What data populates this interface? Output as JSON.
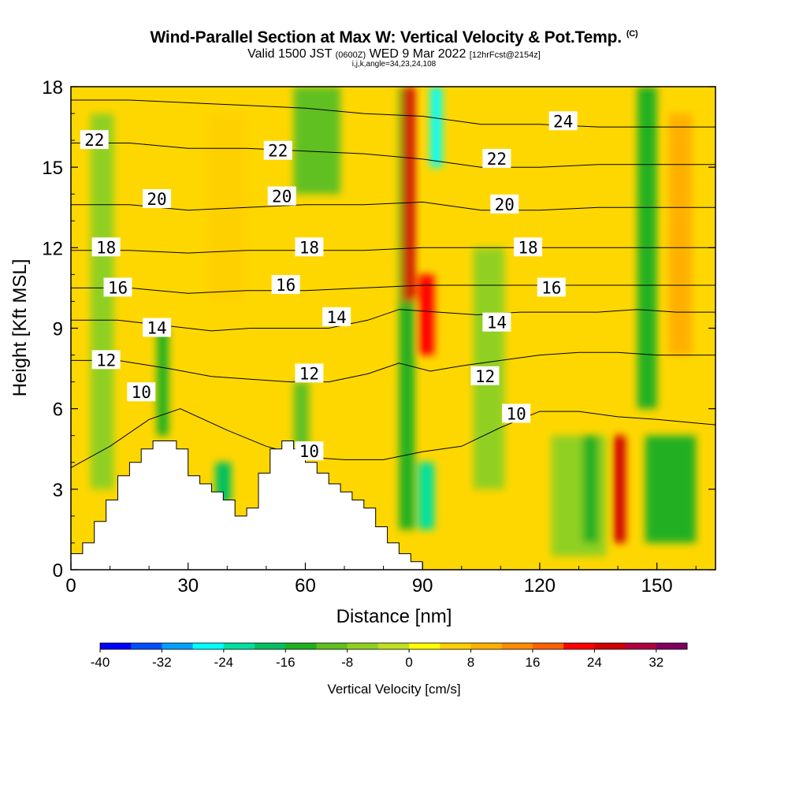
{
  "header": {
    "title": "Wind-Parallel Section at Max W: Vertical Velocity & Pot.Temp.",
    "copyright": "(C)",
    "valid_a": "Valid 1500 JST",
    "valid_b": "(0600Z)",
    "valid_c": "WED 9 Mar 2022",
    "valid_d": "[12hrFcst@2154z]",
    "indices": "i,j,k,angle=34,23,24,108"
  },
  "chart_data": {
    "type": "heatmap",
    "xlabel": "Distance [nm]",
    "ylabel": "Height [Kft MSL]",
    "xlim": [
      0,
      165
    ],
    "ylim": [
      0,
      18
    ],
    "x_ticks": [
      0,
      30,
      60,
      90,
      120,
      150
    ],
    "y_ticks": [
      0,
      3,
      6,
      9,
      12,
      15,
      18
    ],
    "colorbar": {
      "title": "Vertical Velocity [cm/s]",
      "tick_labels": [
        "-40",
        "-32",
        "-24",
        "-16",
        "-8",
        "0",
        "8",
        "16",
        "24",
        "32"
      ],
      "levels": [
        -40,
        -36,
        -32,
        -28,
        -24,
        -20,
        -16,
        -12,
        -8,
        -4,
        0,
        4,
        8,
        12,
        16,
        20,
        24,
        28,
        32,
        36
      ],
      "colors": [
        "#0000ff",
        "#0050ff",
        "#00a0ff",
        "#00ffff",
        "#00e0a0",
        "#00c060",
        "#20b020",
        "#60c020",
        "#90d020",
        "#c0e020",
        "#ffff00",
        "#ffd000",
        "#ffb000",
        "#ff8c00",
        "#ff6000",
        "#ff0000",
        "#d00000",
        "#b00040",
        "#800060"
      ]
    },
    "shading_bands": [
      {
        "x": 5,
        "w": 6,
        "y0": 3,
        "y1": 17,
        "value": -6
      },
      {
        "x": 22,
        "w": 3,
        "y0": 5,
        "y1": 9,
        "value": -14
      },
      {
        "x": 37,
        "w": 4,
        "y0": 2.5,
        "y1": 4,
        "value": -18
      },
      {
        "x": 35,
        "w": 10,
        "y0": 10,
        "y1": 17,
        "value": 6
      },
      {
        "x": 57,
        "w": 4,
        "y0": 4.5,
        "y1": 7,
        "value": -12
      },
      {
        "x": 57,
        "w": 12,
        "y0": 14,
        "y1": 18,
        "value": -10
      },
      {
        "x": 84,
        "w": 4,
        "y0": 1.5,
        "y1": 18,
        "value": -16
      },
      {
        "x": 85,
        "w": 3,
        "y0": 10,
        "y1": 18,
        "value": 24
      },
      {
        "x": 89,
        "w": 4,
        "y0": 8,
        "y1": 11,
        "value": 20
      },
      {
        "x": 89,
        "w": 4,
        "y0": 1.5,
        "y1": 4,
        "value": -24
      },
      {
        "x": 92,
        "w": 3,
        "y0": 15,
        "y1": 18,
        "value": -28
      },
      {
        "x": 103,
        "w": 8,
        "y0": 3,
        "y1": 12,
        "value": -8
      },
      {
        "x": 123,
        "w": 14,
        "y0": 0.5,
        "y1": 5,
        "value": -8
      },
      {
        "x": 131,
        "w": 4,
        "y0": 1,
        "y1": 5,
        "value": -16
      },
      {
        "x": 139,
        "w": 3,
        "y0": 1,
        "y1": 5,
        "value": 24
      },
      {
        "x": 145,
        "w": 5,
        "y0": 6,
        "y1": 18,
        "value": -16
      },
      {
        "x": 147,
        "w": 13,
        "y0": 1,
        "y1": 5,
        "value": -14
      },
      {
        "x": 153,
        "w": 6,
        "y0": 8,
        "y1": 17,
        "value": 8
      }
    ],
    "terrain": [
      [
        0,
        0.6
      ],
      [
        3,
        0.6
      ],
      [
        3,
        1
      ],
      [
        6,
        1
      ],
      [
        6,
        1.8
      ],
      [
        9,
        1.8
      ],
      [
        9,
        2.6
      ],
      [
        12,
        2.6
      ],
      [
        12,
        3.5
      ],
      [
        15,
        3.5
      ],
      [
        15,
        4
      ],
      [
        18,
        4
      ],
      [
        18,
        4.5
      ],
      [
        21,
        4.5
      ],
      [
        21,
        4.8
      ],
      [
        27,
        4.8
      ],
      [
        27,
        4.5
      ],
      [
        30,
        4.5
      ],
      [
        30,
        3.5
      ],
      [
        33,
        3.5
      ],
      [
        33,
        3.2
      ],
      [
        36,
        3.2
      ],
      [
        36,
        2.9
      ],
      [
        39,
        2.9
      ],
      [
        39,
        2.6
      ],
      [
        42,
        2.6
      ],
      [
        42,
        2
      ],
      [
        45,
        2
      ],
      [
        45,
        2.3
      ],
      [
        48,
        2.3
      ],
      [
        48,
        3.6
      ],
      [
        51,
        3.6
      ],
      [
        51,
        4.5
      ],
      [
        54,
        4.5
      ],
      [
        54,
        4.8
      ],
      [
        57,
        4.8
      ],
      [
        57,
        4.5
      ],
      [
        60,
        4.5
      ],
      [
        60,
        4
      ],
      [
        63,
        4
      ],
      [
        63,
        3.6
      ],
      [
        66,
        3.6
      ],
      [
        66,
        3.2
      ],
      [
        69,
        3.2
      ],
      [
        69,
        2.9
      ],
      [
        72,
        2.9
      ],
      [
        72,
        2.6
      ],
      [
        75,
        2.6
      ],
      [
        75,
        2.3
      ],
      [
        78,
        2.3
      ],
      [
        78,
        1.6
      ],
      [
        81,
        1.6
      ],
      [
        81,
        1
      ],
      [
        84,
        1
      ],
      [
        84,
        0.6
      ],
      [
        87,
        0.6
      ],
      [
        87,
        0.3
      ],
      [
        90,
        0.3
      ],
      [
        90,
        0
      ],
      [
        0,
        0
      ]
    ],
    "theta_contours": [
      {
        "level": 10,
        "points": [
          [
            0,
            3.8
          ],
          [
            10,
            4.6
          ],
          [
            20,
            5.6
          ],
          [
            28,
            6
          ],
          [
            40,
            5.2
          ],
          [
            50,
            4.6
          ],
          [
            60,
            4.2
          ],
          [
            70,
            4.1
          ],
          [
            80,
            4.1
          ],
          [
            90,
            4.4
          ],
          [
            100,
            4.6
          ],
          [
            110,
            5.3
          ],
          [
            120,
            5.9
          ],
          [
            130,
            5.9
          ],
          [
            140,
            5.7
          ],
          [
            150,
            5.6
          ],
          [
            165,
            5.4
          ]
        ]
      },
      {
        "level": 12,
        "points": [
          [
            0,
            7.8
          ],
          [
            12,
            7.8
          ],
          [
            25,
            7.5
          ],
          [
            36,
            7.2
          ],
          [
            46,
            7.1
          ],
          [
            56,
            7
          ],
          [
            66,
            7
          ],
          [
            76,
            7.3
          ],
          [
            84,
            7.7
          ],
          [
            92,
            7.4
          ],
          [
            100,
            7.6
          ],
          [
            110,
            7.8
          ],
          [
            120,
            8
          ],
          [
            130,
            8.1
          ],
          [
            140,
            8.1
          ],
          [
            150,
            8
          ],
          [
            165,
            8
          ]
        ]
      },
      {
        "level": 14,
        "points": [
          [
            0,
            9.3
          ],
          [
            12,
            9.3
          ],
          [
            24,
            9.1
          ],
          [
            36,
            8.9
          ],
          [
            46,
            9
          ],
          [
            56,
            9
          ],
          [
            66,
            9
          ],
          [
            76,
            9.3
          ],
          [
            84,
            9.7
          ],
          [
            94,
            9.6
          ],
          [
            104,
            9.5
          ],
          [
            115,
            9.6
          ],
          [
            125,
            9.6
          ],
          [
            135,
            9.6
          ],
          [
            145,
            9.7
          ],
          [
            155,
            9.6
          ],
          [
            165,
            9.6
          ]
        ]
      },
      {
        "level": 16,
        "points": [
          [
            0,
            10.5
          ],
          [
            15,
            10.5
          ],
          [
            30,
            10.3
          ],
          [
            45,
            10.4
          ],
          [
            60,
            10.4
          ],
          [
            75,
            10.5
          ],
          [
            90,
            10.6
          ],
          [
            105,
            10.6
          ],
          [
            120,
            10.6
          ],
          [
            135,
            10.6
          ],
          [
            150,
            10.6
          ],
          [
            165,
            10.6
          ]
        ]
      },
      {
        "level": 18,
        "points": [
          [
            0,
            11.9
          ],
          [
            15,
            11.9
          ],
          [
            30,
            11.8
          ],
          [
            45,
            11.9
          ],
          [
            60,
            11.9
          ],
          [
            75,
            11.9
          ],
          [
            90,
            12
          ],
          [
            105,
            12
          ],
          [
            120,
            12
          ],
          [
            135,
            12
          ],
          [
            150,
            12
          ],
          [
            165,
            12
          ]
        ]
      },
      {
        "level": 20,
        "points": [
          [
            0,
            13.6
          ],
          [
            15,
            13.6
          ],
          [
            30,
            13.4
          ],
          [
            45,
            13.5
          ],
          [
            60,
            13.6
          ],
          [
            75,
            13.6
          ],
          [
            90,
            13.7
          ],
          [
            105,
            13.4
          ],
          [
            120,
            13.4
          ],
          [
            135,
            13.5
          ],
          [
            150,
            13.5
          ],
          [
            165,
            13.5
          ]
        ]
      },
      {
        "level": 22,
        "points": [
          [
            0,
            15.9
          ],
          [
            15,
            15.9
          ],
          [
            30,
            15.7
          ],
          [
            45,
            15.7
          ],
          [
            60,
            15.6
          ],
          [
            75,
            15.5
          ],
          [
            90,
            15.3
          ],
          [
            105,
            15
          ],
          [
            120,
            15
          ],
          [
            135,
            15.1
          ],
          [
            150,
            15.1
          ],
          [
            165,
            15.1
          ]
        ]
      },
      {
        "level": 24,
        "points": [
          [
            0,
            17.5
          ],
          [
            15,
            17.5
          ],
          [
            30,
            17.4
          ],
          [
            45,
            17.3
          ],
          [
            60,
            17.2
          ],
          [
            75,
            17
          ],
          [
            90,
            16.9
          ],
          [
            105,
            16.6
          ],
          [
            120,
            16.6
          ],
          [
            135,
            16.5
          ],
          [
            150,
            16.5
          ],
          [
            165,
            16.5
          ]
        ]
      }
    ],
    "contour_labels": [
      {
        "text": "22",
        "x": 6,
        "y": 16
      },
      {
        "text": "20",
        "x": 22,
        "y": 13.8
      },
      {
        "text": "18",
        "x": 9,
        "y": 12
      },
      {
        "text": "16",
        "x": 12,
        "y": 10.5
      },
      {
        "text": "14",
        "x": 22,
        "y": 9
      },
      {
        "text": "12",
        "x": 9,
        "y": 7.8
      },
      {
        "text": "10",
        "x": 18,
        "y": 6.6
      },
      {
        "text": "22",
        "x": 53,
        "y": 15.6
      },
      {
        "text": "20",
        "x": 54,
        "y": 13.9
      },
      {
        "text": "18",
        "x": 61,
        "y": 12
      },
      {
        "text": "16",
        "x": 55,
        "y": 10.6
      },
      {
        "text": "14",
        "x": 68,
        "y": 9.4
      },
      {
        "text": "12",
        "x": 61,
        "y": 7.3
      },
      {
        "text": "10",
        "x": 61,
        "y": 4.4
      },
      {
        "text": "24",
        "x": 126,
        "y": 16.7
      },
      {
        "text": "22",
        "x": 109,
        "y": 15.3
      },
      {
        "text": "20",
        "x": 111,
        "y": 13.6
      },
      {
        "text": "18",
        "x": 117,
        "y": 12
      },
      {
        "text": "16",
        "x": 123,
        "y": 10.5
      },
      {
        "text": "14",
        "x": 109,
        "y": 9.2
      },
      {
        "text": "12",
        "x": 106,
        "y": 7.2
      },
      {
        "text": "10",
        "x": 114,
        "y": 5.8
      }
    ]
  }
}
